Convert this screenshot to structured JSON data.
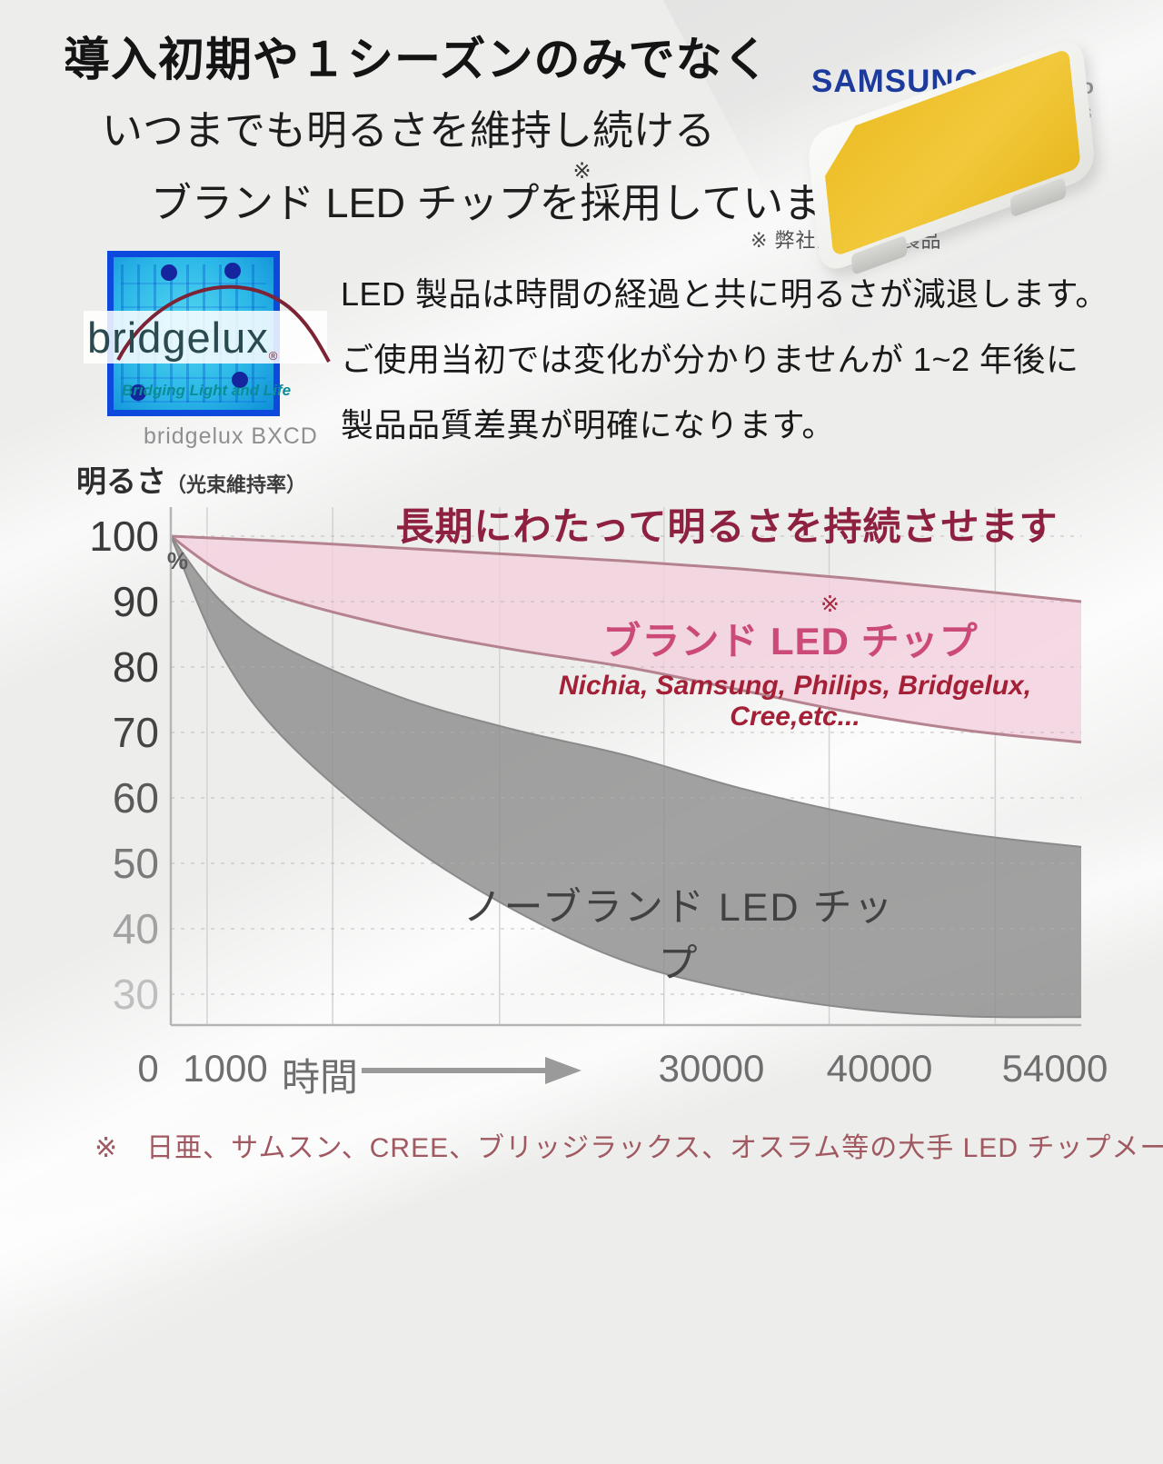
{
  "header": {
    "line1": "導入初期や１シーズンのみでなく",
    "line2": "いつまでも明るさを維持し続ける",
    "line3_prefix": "ブランド LED チップを",
    "line3_note_mark": "※",
    "line3_suffix": "採用しています。",
    "model_note": "※ 弊社全モデル製品"
  },
  "samsung": {
    "brand": "SAMSUNG",
    "model1": "LM281B+Pro",
    "model2": "LM301series",
    "brand_color": "#1c3b9c"
  },
  "bridgelux": {
    "logo_text": "bridgelux",
    "reg_mark": "®",
    "tagline": "Bridging Light and Life",
    "caption": "bridgelux BXCD"
  },
  "intro": {
    "line1": "LED 製品は時間の経過と共に明るさが減退します。",
    "line2": "ご使用当初では変化が分かりませんが 1~2 年後に",
    "line3": "製品品質差異が明確になります。"
  },
  "chart": {
    "y_axis_title": "明るさ",
    "y_axis_subtitle": "（光束維持率）",
    "percent_mark": "%",
    "title": "長期にわたって明るさを持続させます",
    "brand_label": "ブランド LED チップ",
    "brand_note_mark": "※",
    "brand_sub": "Nichia, Samsung, Philips, Bridgelux, Cree,etc...",
    "nobrand_label": "ノーブランド LED チップ",
    "colors": {
      "brand_fill": "rgba(243,207,221,0.8)",
      "brand_edge": "#b4838f",
      "nobrand_fill": "rgba(142,142,142,0.82)",
      "nobrand_edge": "#8a8a8a",
      "grid_v": "#d2d2d2",
      "grid_h_dash": "#bdadb2",
      "axis": "#b5b5b5",
      "arrow": "#9a9a9a"
    },
    "y_tick_colors": [
      "#3b3b3b",
      "#3b3b3b",
      "#3b3b3b",
      "#454545",
      "#5a5a5a",
      "#7a7a7a",
      "#a2a2a2",
      "#bfbfbf"
    ],
    "x_ticks_layout": [
      {
        "label": "0",
        "x": 163
      },
      {
        "label": "1000",
        "x": 248
      },
      {
        "label": "時間",
        "x": 352
      },
      {
        "label": "30000",
        "x": 783
      },
      {
        "label": "40000",
        "x": 968
      },
      {
        "label": "54000",
        "x": 1161
      }
    ]
  },
  "footnote": "※　日亜、サムスン、CREE、ブリッジラックス、オスラム等の大手 LED チップメーカー",
  "chart_data": {
    "type": "area",
    "title": "長期にわたって明るさを持続させます",
    "xlabel": "時間",
    "ylabel": "明るさ（光束維持率）%",
    "xlim": [
      0,
      54000
    ],
    "x_ticks": [
      0,
      1000,
      30000,
      40000,
      54000
    ],
    "y_ticks": [
      100,
      90,
      80,
      70,
      60,
      50,
      40,
      30
    ],
    "grid": true,
    "v_gridlines_hours": [
      2150,
      9600,
      19500,
      29250,
      39050,
      48900
    ],
    "series": [
      {
        "name": "ブランド LED チップ（上限）",
        "x": [
          0,
          6750,
          13500,
          20250,
          27000,
          33750,
          40500,
          47250,
          54000
        ],
        "values": [
          100,
          99.2,
          98.2,
          97.2,
          96.2,
          95,
          93.5,
          91.8,
          90
        ]
      },
      {
        "name": "ブランド LED チップ（下限）",
        "x": [
          0,
          3000,
          6750,
          13500,
          20250,
          27000,
          33750,
          40500,
          47250,
          54000
        ],
        "values": [
          100,
          94.5,
          90.5,
          86,
          82.7,
          80,
          76.5,
          73,
          70.3,
          68.5
        ]
      },
      {
        "name": "ノーブランド LED チップ（上限）",
        "x": [
          0,
          3000,
          6750,
          13500,
          20250,
          27000,
          33750,
          40500,
          47250,
          54000
        ],
        "values": [
          100,
          90,
          83,
          75.5,
          70.5,
          66.5,
          61.5,
          57.5,
          54.5,
          52.5
        ]
      },
      {
        "name": "ノーブランド LED チップ（下限）",
        "x": [
          0,
          3000,
          6750,
          13500,
          20250,
          27000,
          33750,
          40500,
          47250,
          54000
        ],
        "values": [
          100,
          82,
          69,
          54,
          43,
          35,
          30.5,
          27.8,
          26.6,
          26.5
        ]
      }
    ]
  }
}
